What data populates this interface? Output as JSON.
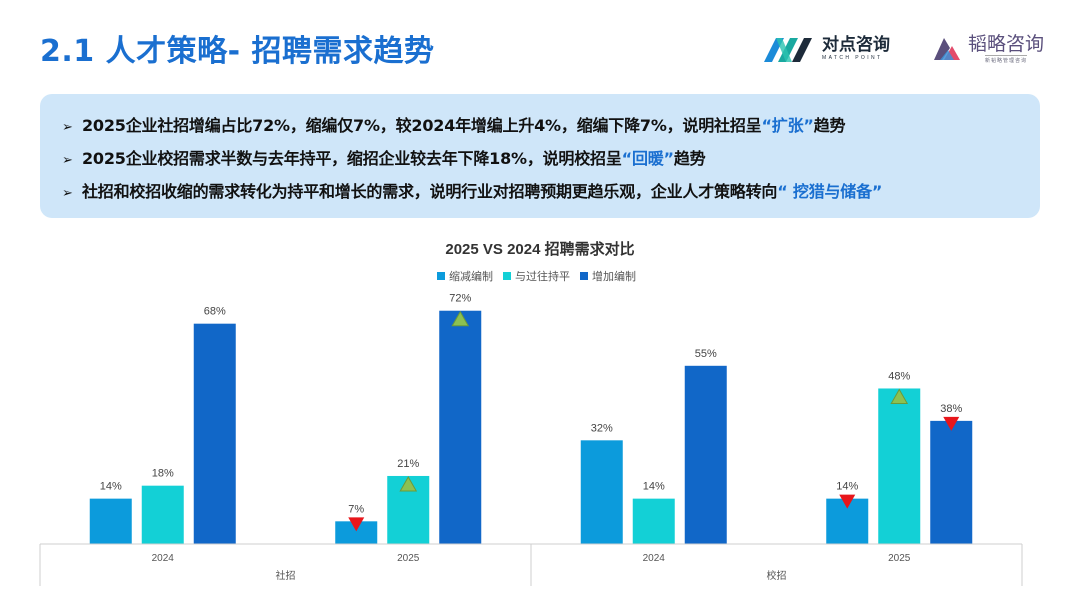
{
  "header": {
    "title": "2.1 人才策略- 招聘需求趋势",
    "logo1": {
      "cn": "对点咨询",
      "en": "MATCH POINT"
    },
    "logo2": {
      "cn": "韬略咨询",
      "en": "新韬略管理咨询"
    }
  },
  "summary": {
    "bullets": [
      {
        "pre": "2025企业社招增编占比72%，缩编仅7%，较2024年增编上升4%，缩编下降7%，说明社招呈",
        "hl": "“扩张”",
        "post": "趋势"
      },
      {
        "pre": "2025企业校招需求半数与去年持平，缩招企业较去年下降18%，说明校招呈",
        "hl": "“回暖”",
        "post": "趋势"
      },
      {
        "pre": "社招和校招收缩的需求转化为持平和增长的需求，说明行业对招聘预期更趋乐观，企业人才策略转向",
        "hl": "“ 挖猎与储备”",
        "post": ""
      }
    ]
  },
  "chart_data": {
    "type": "bar",
    "title": "2025 VS 2024 招聘需求对比",
    "legend_position": "top-center",
    "groups": [
      {
        "name": "社招",
        "categories": [
          "2024",
          "2025"
        ]
      },
      {
        "name": "校招",
        "categories": [
          "2024",
          "2025"
        ]
      }
    ],
    "categories": [
      "2024",
      "2025",
      "2024",
      "2025"
    ],
    "series": [
      {
        "name": "缩减编制",
        "color": "#0c9bdc",
        "values": [
          14,
          7,
          32,
          14
        ],
        "labels": [
          "14%",
          "7%",
          "32%",
          "14%"
        ]
      },
      {
        "name": "与过往持平",
        "color": "#13d0d6",
        "values": [
          18,
          21,
          14,
          48
        ],
        "labels": [
          "18%",
          "21%",
          "14%",
          "48%"
        ]
      },
      {
        "name": "增加编制",
        "color": "#1167c8",
        "values": [
          68,
          72,
          55,
          38
        ],
        "labels": [
          "68%",
          "72%",
          "55%",
          "38%"
        ]
      }
    ],
    "markers": [
      {
        "category_index": 1,
        "series_index": 0,
        "type": "down",
        "color": "#e8161b"
      },
      {
        "category_index": 1,
        "series_index": 1,
        "type": "up",
        "color": "#8cc152"
      },
      {
        "category_index": 1,
        "series_index": 2,
        "type": "up",
        "color": "#8cc152"
      },
      {
        "category_index": 3,
        "series_index": 0,
        "type": "down",
        "color": "#e8161b"
      },
      {
        "category_index": 3,
        "series_index": 1,
        "type": "up",
        "color": "#8cc152"
      },
      {
        "category_index": 3,
        "series_index": 2,
        "type": "down",
        "color": "#e8161b"
      }
    ],
    "ylim": [
      0,
      80
    ],
    "grid": false
  }
}
